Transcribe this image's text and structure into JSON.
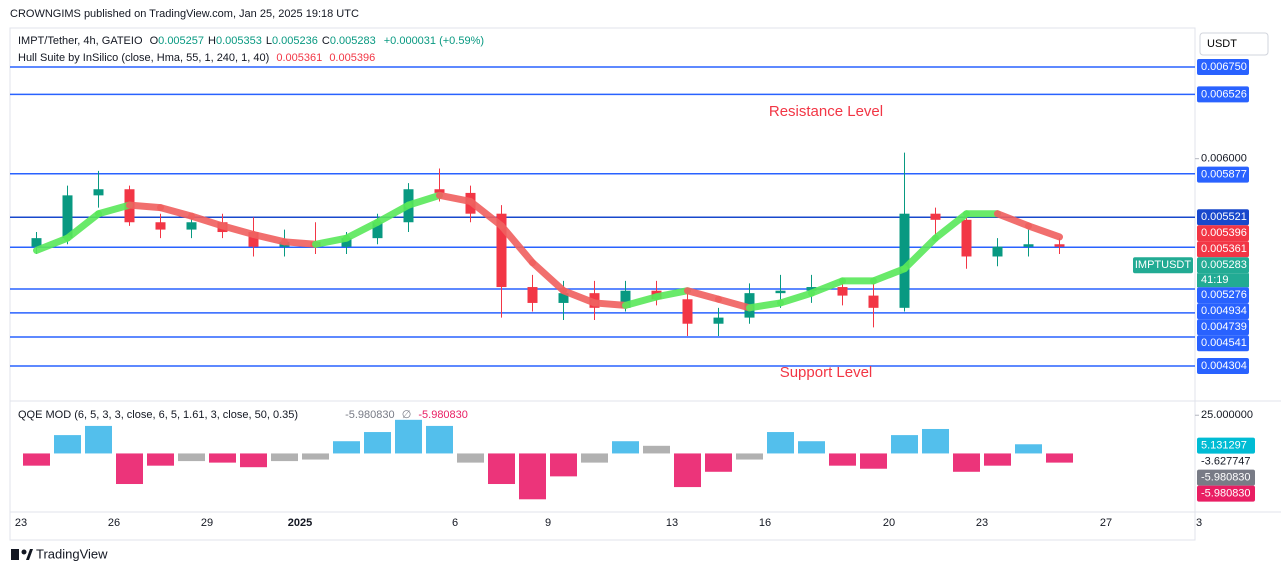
{
  "page": {
    "published": "CROWNGIMS published on TradingView.com, Jan 25, 2025 19:18 UTC",
    "currency": "USDT",
    "footer": "TradingView"
  },
  "chart_data": [
    {
      "type": "candlestick",
      "title": "IMPT/Tether, 4h, GATEIO",
      "quote": [
        {
          "key": "O",
          "value": "0.005257"
        },
        {
          "key": "H",
          "value": "0.005353"
        },
        {
          "key": "L",
          "value": "0.005236"
        },
        {
          "key": "C",
          "value": "0.005283"
        }
      ],
      "change": "+0.000031 (+0.59%)",
      "indicator": {
        "name": "Hull Suite by InSilico (close, Hma, 55, 1, 240, 1, 40)",
        "values": [
          "0.005361",
          "0.005396"
        ],
        "up_color": "#59e85a",
        "down_color": "#f0605f",
        "hull": [
          0.00525,
          0.00535,
          0.00555,
          0.00562,
          0.0056,
          0.00553,
          0.00545,
          0.00538,
          0.00532,
          0.0053,
          0.00535,
          0.00548,
          0.00562,
          0.0057,
          0.00565,
          0.00545,
          0.00515,
          0.00492,
          0.00482,
          0.0048,
          0.00487,
          0.00492,
          0.00485,
          0.00478,
          0.00482,
          0.0049,
          0.005,
          0.005,
          0.0051,
          0.00535,
          0.00555,
          0.00555,
          0.00545,
          0.00536,
          null,
          null,
          null,
          null,
          null
        ]
      },
      "categories": [
        "23",
        null,
        null,
        "26",
        null,
        null,
        "29",
        null,
        null,
        "2025",
        null,
        null,
        null,
        null,
        "6",
        null,
        null,
        "9",
        null,
        null,
        null,
        "13",
        null,
        null,
        "16",
        null,
        null,
        null,
        "20",
        null,
        null,
        "23",
        null,
        null,
        null,
        "27",
        null,
        null,
        "3"
      ],
      "open": [
        0.00528,
        0.00535,
        0.0057,
        0.00575,
        0.00548,
        0.00542,
        0.00548,
        0.0054,
        0.00528,
        0.00532,
        0.00528,
        0.00535,
        0.00548,
        0.00575,
        0.00572,
        0.00555,
        0.00495,
        0.00482,
        0.0049,
        0.00478,
        0.00492,
        0.00485,
        0.00465,
        0.0047,
        0.0049,
        0.00492,
        0.00495,
        0.00488,
        0.00478,
        0.00555,
        0.0055,
        0.0052,
        0.00528,
        0.0053,
        null,
        null,
        null,
        null,
        null
      ],
      "high": [
        0.0054,
        0.00578,
        0.0059,
        0.00578,
        0.00555,
        0.00552,
        0.00555,
        0.00552,
        0.00542,
        0.00548,
        0.0054,
        0.00555,
        0.0058,
        0.00592,
        0.00578,
        0.00562,
        0.00505,
        0.005,
        0.005,
        0.005,
        0.005,
        0.00492,
        0.00478,
        0.00498,
        0.00505,
        0.00505,
        0.00502,
        0.00498,
        0.00605,
        0.0056,
        0.00555,
        0.00535,
        0.00542,
        0.00535,
        null,
        null,
        null,
        null,
        null
      ],
      "low": [
        0.00522,
        0.0053,
        0.0056,
        0.00545,
        0.00535,
        0.00535,
        0.00535,
        0.0052,
        0.0052,
        0.00522,
        0.00522,
        0.0053,
        0.0054,
        0.00565,
        0.00548,
        0.0047,
        0.00475,
        0.00468,
        0.00468,
        0.00475,
        0.0048,
        0.00455,
        0.00455,
        0.00465,
        0.00478,
        0.00482,
        0.0048,
        0.00462,
        0.00475,
        0.00535,
        0.0051,
        0.00512,
        0.0052,
        0.00522,
        null,
        null,
        null,
        null,
        null
      ],
      "close": [
        0.00535,
        0.0057,
        0.00575,
        0.00548,
        0.00542,
        0.00548,
        0.0054,
        0.00528,
        0.00532,
        0.00528,
        0.00535,
        0.00548,
        0.00575,
        0.00572,
        0.00555,
        0.00495,
        0.00482,
        0.0049,
        0.00478,
        0.00492,
        0.00485,
        0.00465,
        0.0047,
        0.0049,
        0.00492,
        0.00495,
        0.00488,
        0.00478,
        0.00555,
        0.0055,
        0.0052,
        0.00528,
        0.0053,
        0.00528,
        null,
        null,
        null,
        null,
        null
      ],
      "up_color": "#089981",
      "down_color": "#f23645",
      "ylim": [
        0.004026,
        0.007069
      ],
      "yticks": [
        {
          "value": 0.006,
          "label": "0.006000"
        }
      ],
      "levels": [
        {
          "value": 0.00675,
          "label": "0.006750",
          "color": "#2962ff"
        },
        {
          "value": 0.006526,
          "label": "0.006526",
          "color": "#2962ff"
        },
        {
          "value": 0.005877,
          "label": "0.005877",
          "color": "#2962ff"
        },
        {
          "value": 0.005521,
          "label": "0.005521",
          "color": "#1848cc"
        },
        {
          "value": 0.005276,
          "label": "0.005276",
          "color": "#2962ff"
        },
        {
          "value": 0.004934,
          "label": "0.004934",
          "color": "#2962ff"
        },
        {
          "value": 0.004739,
          "label": "0.004739",
          "color": "#2962ff"
        },
        {
          "value": 0.004541,
          "label": "0.004541",
          "color": "#2962ff"
        },
        {
          "value": 0.004304,
          "label": "0.004304",
          "color": "#2962ff"
        }
      ],
      "markers": [
        {
          "value": 0.005396,
          "label": "0.005396",
          "color": "#f23645"
        },
        {
          "value": 0.005361,
          "label": "0.005361",
          "color": "#f23645"
        },
        {
          "value": 0.005283,
          "label": "0.005283",
          "name": "IMPTUSDT",
          "countdown": "41:19",
          "color": "#22ab94"
        }
      ],
      "annotations": [
        "Resistance Level",
        "Support Level"
      ]
    },
    {
      "type": "bar",
      "title": "QQE MOD (6, 5, 3, 3, close, 6, 5, 1.61, 3, close, 50, 0.35)",
      "legend_values": [
        "-5.980830",
        "∅",
        "-5.980830"
      ],
      "values": [
        -8,
        12,
        18,
        -20,
        -8,
        -5,
        -6,
        -9,
        -5,
        -4,
        8,
        14,
        22,
        18,
        -6,
        -20,
        -30,
        -15,
        -6,
        8,
        5,
        -22,
        -12,
        -4,
        14,
        8,
        -8,
        -10,
        12,
        16,
        -12,
        -8,
        6,
        -6,
        null,
        null,
        null,
        null,
        null
      ],
      "colors": [
        "#ea1e6c",
        "#40b8ea",
        "#40b8ea",
        "#ea1e6c",
        "#ea1e6c",
        "#a9a9a9",
        "#ea1e6c",
        "#ea1e6c",
        "#a9a9a9",
        "#a9a9a9",
        "#40b8ea",
        "#40b8ea",
        "#40b8ea",
        "#40b8ea",
        "#a9a9a9",
        "#ea1e6c",
        "#ea1e6c",
        "#ea1e6c",
        "#a9a9a9",
        "#40b8ea",
        "#a9a9a9",
        "#ea1e6c",
        "#ea1e6c",
        "#a9a9a9",
        "#40b8ea",
        "#40b8ea",
        "#ea1e6c",
        "#ea1e6c",
        "#40b8ea",
        "#40b8ea",
        "#ea1e6c",
        "#ea1e6c",
        "#40b8ea",
        "#ea1e6c",
        null,
        null,
        null,
        null,
        null
      ],
      "ylim": [
        -37,
        33
      ],
      "yticks": [
        {
          "value": 25,
          "label": "25.000000"
        }
      ],
      "markers": [
        {
          "value": 5.131297,
          "label": "5.131297",
          "color": "#00bcd4"
        },
        {
          "value": -3.627747,
          "label": "-3.627747",
          "color": null
        },
        {
          "value": -5.98083,
          "label": "-5.980830",
          "color": "#787b86"
        },
        {
          "value": -5.98083,
          "label": "-5.980830",
          "color": "#e91e63"
        }
      ]
    }
  ]
}
